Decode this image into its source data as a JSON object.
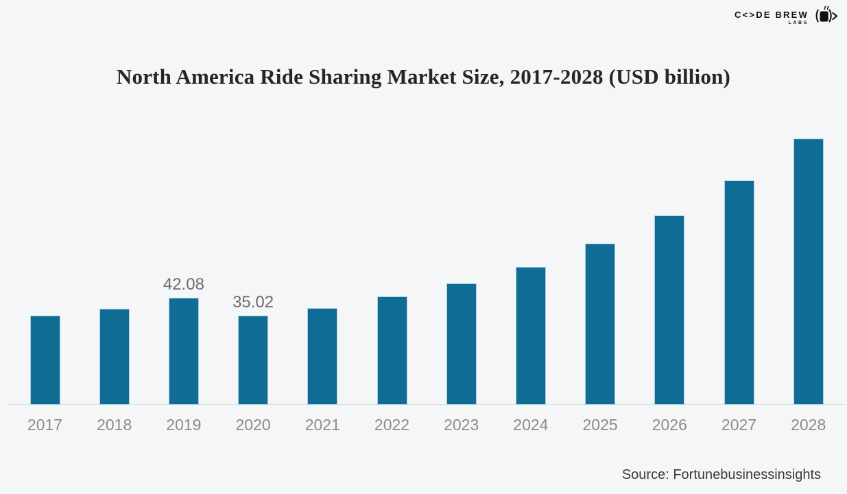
{
  "logo": {
    "brand": "C<>DE BREW",
    "sub": "LABS",
    "icon": "code-brew-mug-icon"
  },
  "chart_data": {
    "type": "bar",
    "title": "North America Ride Sharing Market Size, 2017-2028 (USD billion)",
    "categories": [
      "2017",
      "2018",
      "2019",
      "2020",
      "2021",
      "2022",
      "2023",
      "2024",
      "2025",
      "2026",
      "2027",
      "2028"
    ],
    "values": [
      34.9,
      37.7,
      42.08,
      35.02,
      38.1,
      42.5,
      47.8,
      54.5,
      63.7,
      74.9,
      88.8,
      105.5
    ],
    "value_labels": [
      "",
      "",
      "42.08",
      "35.02",
      "",
      "",
      "",
      "",
      "",
      "",
      "",
      ""
    ],
    "xlabel": "",
    "ylabel": "",
    "ylim": [
      0,
      112
    ],
    "grid": false,
    "legend": false,
    "bar_color": "#0f6d95",
    "bar_stroke_color": "#aecdde",
    "value_label_color": "#6c6c6c",
    "axis_tick_color": "#8b8b8b",
    "axis_line_color": "#dcddde",
    "background_color": "#f5f6f7"
  },
  "source": {
    "text": "Source: Fortunebusinessinsights"
  }
}
